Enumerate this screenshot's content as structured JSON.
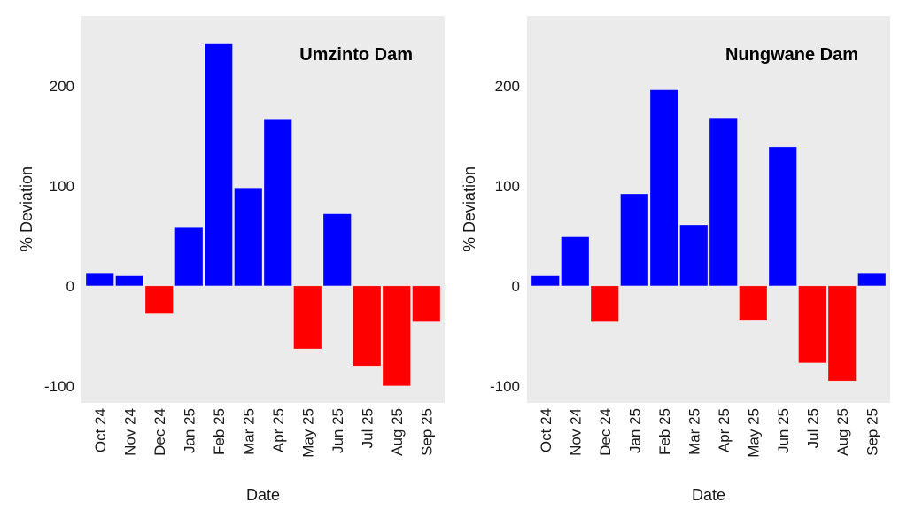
{
  "chart_data": [
    {
      "type": "bar",
      "title": "Umzinto Dam",
      "xlabel": "Date",
      "ylabel": "% Deviation",
      "ylim": [
        -117,
        270
      ],
      "yticks": [
        -100,
        0,
        100,
        200
      ],
      "grid": false,
      "categories": [
        "Oct 24",
        "Nov 24",
        "Dec 24",
        "Jan 25",
        "Feb 25",
        "Mar 25",
        "Apr 25",
        "May 25",
        "Jun 25",
        "Jul 25",
        "Aug 25",
        "Sep 25"
      ],
      "values": [
        13,
        10,
        -28,
        59,
        242,
        98,
        167,
        -63,
        72,
        -80,
        -100,
        -36
      ],
      "colors": {
        "positive": "#0000ff",
        "negative": "#ff0000"
      },
      "background": "#ebebeb"
    },
    {
      "type": "bar",
      "title": "Nungwane Dam",
      "xlabel": "Date",
      "ylabel": "% Deviation",
      "ylim": [
        -117,
        270
      ],
      "yticks": [
        -100,
        0,
        100,
        200
      ],
      "grid": false,
      "categories": [
        "Oct 24",
        "Nov 24",
        "Dec 24",
        "Jan 25",
        "Feb 25",
        "Mar 25",
        "Apr 25",
        "May 25",
        "Jun 25",
        "Jul 25",
        "Aug 25",
        "Sep 25"
      ],
      "values": [
        10,
        49,
        -36,
        92,
        196,
        61,
        168,
        -34,
        139,
        -77,
        -95,
        13
      ],
      "colors": {
        "positive": "#0000ff",
        "negative": "#ff0000"
      },
      "background": "#ebebeb"
    }
  ]
}
